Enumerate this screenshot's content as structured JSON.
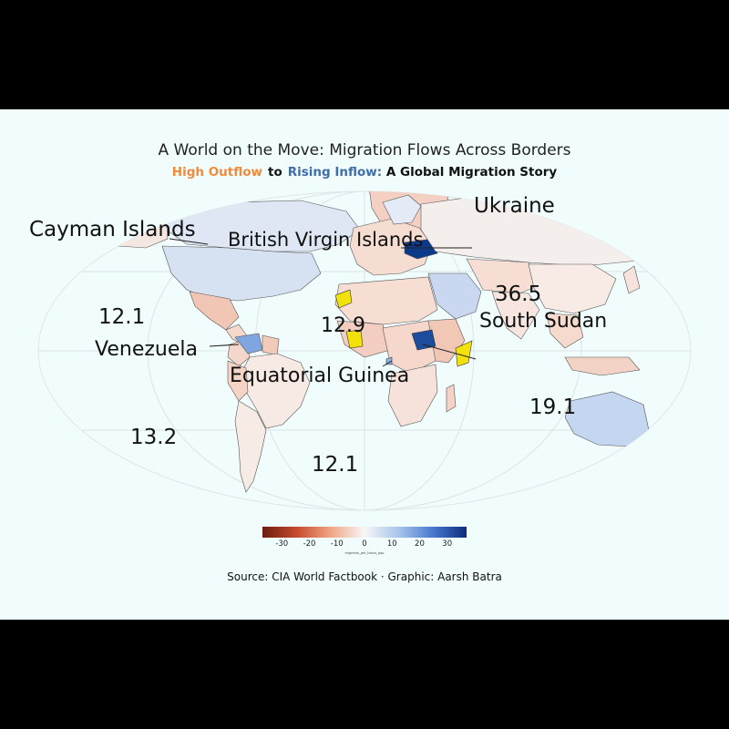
{
  "title": "A World on the Move: Migration Flows Across Borders",
  "subtitle": {
    "outflow": "High Outflow",
    "connector": "to",
    "inflow": "Rising Inflow:",
    "rest": "A Global Migration Story",
    "outflow_color": "#f08a3c",
    "inflow_color": "#3f6ea8"
  },
  "source": "Source: CIA World Factbook · Graphic: Aarsh Batra",
  "legend": {
    "ticks": [
      "-30",
      "-20",
      "-10",
      "0",
      "10",
      "20",
      "30"
    ],
    "range": [
      -37,
      37
    ],
    "unit": "migrants_per_thous_pop"
  },
  "colors": {
    "background": "#f0fdfc",
    "frame": "#000000",
    "highlight": "#f2e20a",
    "ocean_grid": "#d9dede"
  },
  "annotations": {
    "cayman": "Cayman Islands",
    "bvi": "British Virgin Islands",
    "ukraine": "Ukraine",
    "south_sudan": "South Sudan",
    "venezuela": "Venezuela",
    "eq_guinea": "Equatorial Guinea",
    "v_12_1_a": "12.1",
    "v_12_9": "12.9",
    "v_36_5": "36.5",
    "v_19_1": "19.1",
    "v_13_2": "13.2",
    "v_12_1_b": "12.1"
  }
}
